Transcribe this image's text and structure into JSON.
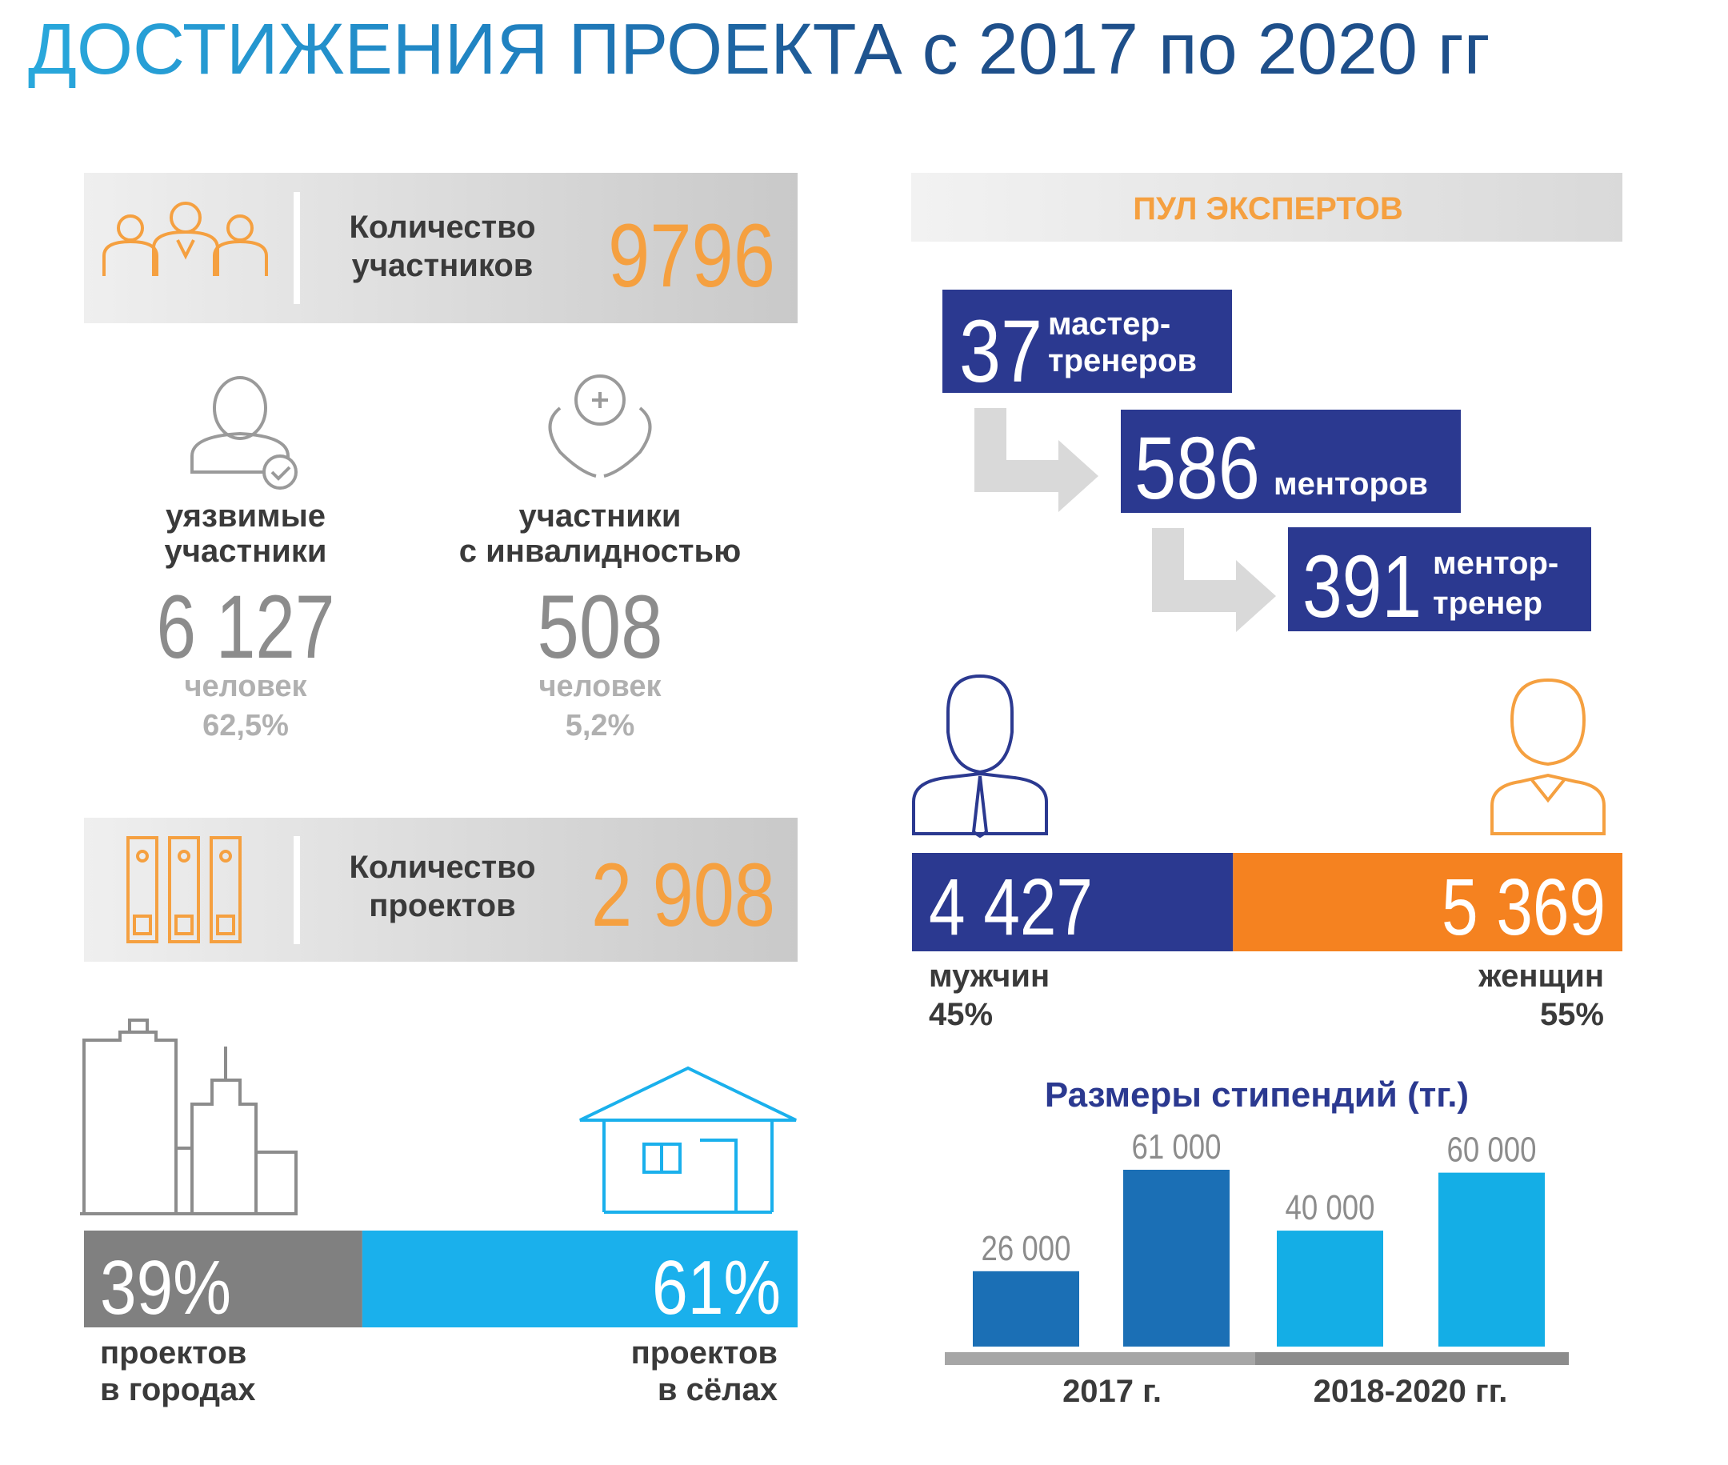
{
  "title": "ДОСТИЖЕНИЯ ПРОЕКТА с 2017 по 2020 гг",
  "participants": {
    "label": [
      "Количество",
      "участников"
    ],
    "value": "9796"
  },
  "vulnerable": {
    "label": [
      "уязвимые",
      "участники"
    ],
    "value": "6 127",
    "unit": "человек",
    "share": "62,5%"
  },
  "disabled": {
    "label": [
      "участники",
      "с инвалидностью"
    ],
    "value": "508",
    "unit": "человек",
    "share": "5,2%"
  },
  "projects": {
    "label": [
      "Количество",
      "проектов"
    ],
    "value": "2 908"
  },
  "project_location": {
    "values": [
      39,
      61
    ],
    "value_labels": [
      "39%",
      "61%"
    ],
    "colors": [
      "#808080",
      "#1ab0ec"
    ],
    "captions": [
      [
        "проектов",
        "в городах"
      ],
      [
        "проектов",
        "в сёлах"
      ]
    ]
  },
  "experts": {
    "title": "ПУЛ ЭКСПЕРТОВ",
    "levels": [
      {
        "value": "37",
        "label": [
          "мастер-",
          "тренеров"
        ]
      },
      {
        "value": "586",
        "label": [
          "менторов"
        ]
      },
      {
        "value": "391",
        "label": [
          "ментор-",
          "тренер"
        ]
      }
    ]
  },
  "gender": {
    "values": [
      4427,
      5369
    ],
    "value_labels": [
      "4 427",
      "5 369"
    ],
    "colors": [
      "#2b3990",
      "#f58220"
    ],
    "captions": [
      "мужчин",
      "женщин"
    ],
    "shares": [
      "45%",
      "55%"
    ]
  },
  "chart_data": {
    "type": "bar",
    "title": "Размеры стипендий (тг.)",
    "categories": [
      "2017 г.",
      "2018-2020 гг."
    ],
    "values": [
      [
        26000,
        61000
      ],
      [
        40000,
        60000
      ]
    ],
    "value_labels": [
      [
        "26 000",
        "61 000"
      ],
      [
        "40 000",
        "60 000"
      ]
    ],
    "colors": [
      "#1b6fb5",
      "#14aee6"
    ]
  }
}
